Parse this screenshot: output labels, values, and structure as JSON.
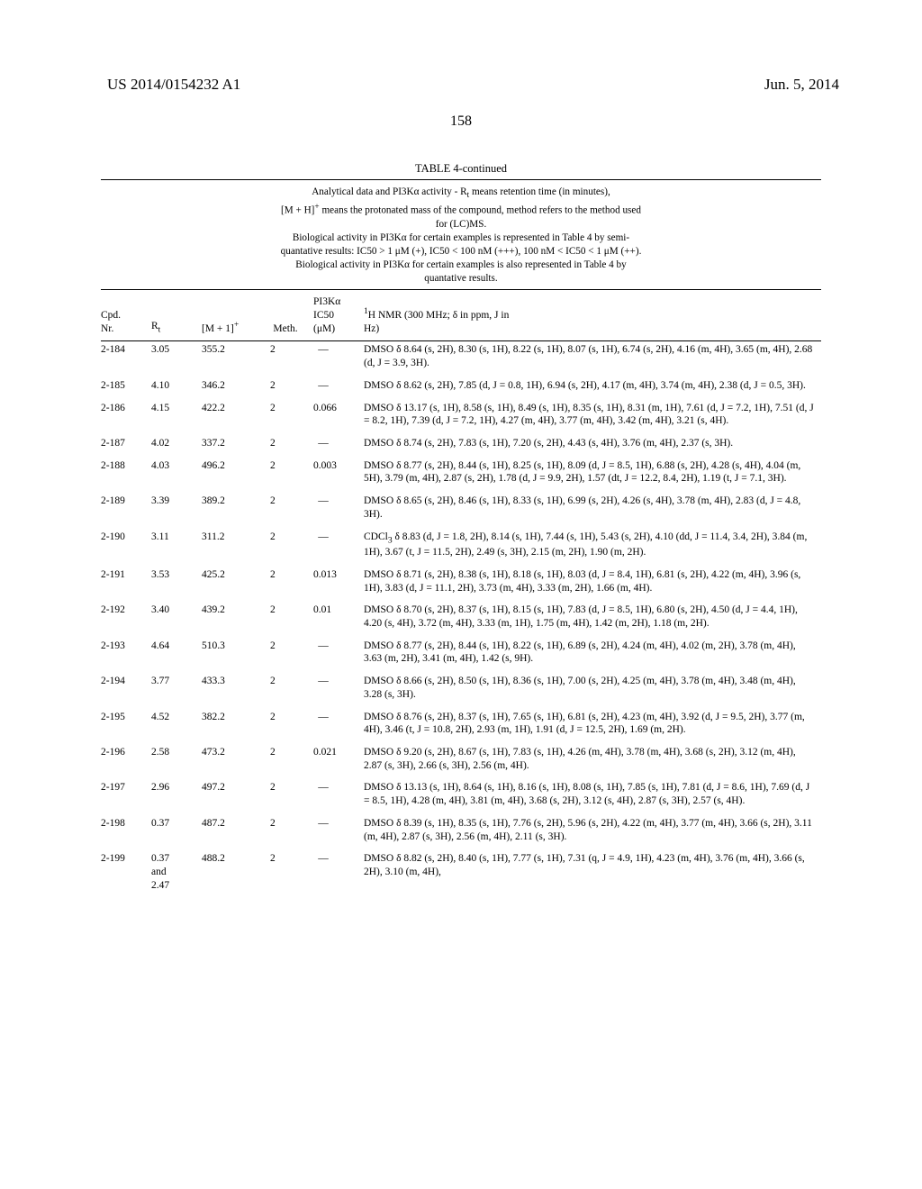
{
  "header": {
    "left": "US 2014/0154232 A1",
    "right": "Jun. 5, 2014"
  },
  "page_number": "158",
  "table": {
    "title": "TABLE 4-continued",
    "caption_lines": [
      "Analytical data and PI3Kα activity - R<sub>t</sub> means retention time (in minutes),",
      "[M + H]<sup>+</sup> means the protonated mass of the compound, method refers to the method used",
      "for (LC)MS.",
      "Biological activity in PI3Kα for certain examples is represented in Table 4 by semi-",
      "quantative results: IC50 > 1 μM (+), IC50 < 100 nM (+++), 100 nM < IC50 < 1 μM (++).",
      "Biological activity in PI3Kα for certain examples is also represented in Table 4 by",
      "quantative results."
    ],
    "columns": {
      "cpd": "Cpd.<br>Nr.",
      "rt": "R<sub>t</sub>",
      "m1": "[M + 1]<sup>+</sup>",
      "meth": "Meth.",
      "ic50": "PI3Kα<br>IC50<br>(μM)",
      "nmr": "<sup>1</sup>H NMR (300 MHz; δ in ppm, J in<br>Hz)"
    },
    "rows": [
      {
        "cpd": "2-184",
        "rt": "3.05",
        "m1": "355.2",
        "meth": "2",
        "ic50": "—",
        "nmr": "DMSO δ 8.64 (s, 2H), 8.30 (s, 1H), 8.22 (s, 1H), 8.07 (s, 1H), 6.74 (s, 2H), 4.16 (m, 4H), 3.65 (m, 4H), 2.68 (d, J = 3.9, 3H)."
      },
      {
        "cpd": "2-185",
        "rt": "4.10",
        "m1": "346.2",
        "meth": "2",
        "ic50": "—",
        "nmr": "DMSO δ 8.62 (s, 2H), 7.85 (d, J = 0.8, 1H), 6.94 (s, 2H), 4.17 (m, 4H), 3.74 (m, 4H), 2.38 (d, J = 0.5, 3H)."
      },
      {
        "cpd": "2-186",
        "rt": "4.15",
        "m1": "422.2",
        "meth": "2",
        "ic50": "0.066",
        "nmr": "DMSO δ 13.17 (s, 1H), 8.58 (s, 1H), 8.49 (s, 1H), 8.35 (s, 1H), 8.31 (m, 1H), 7.61 (d, J = 7.2, 1H), 7.51 (d, J = 8.2, 1H), 7.39 (d, J = 7.2, 1H), 4.27 (m, 4H), 3.77 (m, 4H), 3.42 (m, 4H), 3.21 (s, 4H)."
      },
      {
        "cpd": "2-187",
        "rt": "4.02",
        "m1": "337.2",
        "meth": "2",
        "ic50": "—",
        "nmr": "DMSO δ 8.74 (s, 2H), 7.83 (s, 1H), 7.20 (s, 2H), 4.43 (s, 4H), 3.76 (m, 4H), 2.37 (s, 3H)."
      },
      {
        "cpd": "2-188",
        "rt": "4.03",
        "m1": "496.2",
        "meth": "2",
        "ic50": "0.003",
        "nmr": "DMSO δ 8.77 (s, 2H), 8.44 (s, 1H), 8.25 (s, 1H), 8.09 (d, J = 8.5, 1H), 6.88 (s, 2H), 4.28 (s, 4H), 4.04 (m, 5H), 3.79 (m, 4H), 2.87 (s, 2H), 1.78 (d, J = 9.9, 2H), 1.57 (dt, J = 12.2, 8.4, 2H), 1.19 (t, J = 7.1, 3H)."
      },
      {
        "cpd": "2-189",
        "rt": "3.39",
        "m1": "389.2",
        "meth": "2",
        "ic50": "—",
        "nmr": "DMSO δ 8.65 (s, 2H), 8.46 (s, 1H), 8.33 (s, 1H), 6.99 (s, 2H), 4.26 (s, 4H), 3.78 (m, 4H), 2.83 (d, J = 4.8, 3H)."
      },
      {
        "cpd": "2-190",
        "rt": "3.11",
        "m1": "311.2",
        "meth": "2",
        "ic50": "—",
        "nmr": "CDCl<sub>3</sub> δ 8.83 (d, J = 1.8, 2H), 8.14 (s, 1H), 7.44 (s, 1H), 5.43 (s, 2H), 4.10 (dd, J = 11.4, 3.4, 2H), 3.84 (m, 1H), 3.67 (t, J = 11.5, 2H), 2.49 (s, 3H), 2.15 (m, 2H), 1.90 (m, 2H)."
      },
      {
        "cpd": "2-191",
        "rt": "3.53",
        "m1": "425.2",
        "meth": "2",
        "ic50": "0.013",
        "nmr": "DMSO δ 8.71 (s, 2H), 8.38 (s, 1H), 8.18 (s, 1H), 8.03 (d, J = 8.4, 1H), 6.81 (s, 2H), 4.22 (m, 4H), 3.96 (s, 1H), 3.83 (d, J = 11.1, 2H), 3.73 (m, 4H), 3.33 (m, 2H), 1.66 (m, 4H)."
      },
      {
        "cpd": "2-192",
        "rt": "3.40",
        "m1": "439.2",
        "meth": "2",
        "ic50": "0.01",
        "nmr": "DMSO δ 8.70 (s, 2H), 8.37 (s, 1H), 8.15 (s, 1H), 7.83 (d, J = 8.5, 1H), 6.80 (s, 2H), 4.50 (d, J = 4.4, 1H), 4.20 (s, 4H), 3.72 (m, 4H), 3.33 (m, 1H), 1.75 (m, 4H), 1.42 (m, 2H), 1.18 (m, 2H)."
      },
      {
        "cpd": "2-193",
        "rt": "4.64",
        "m1": "510.3",
        "meth": "2",
        "ic50": "—",
        "nmr": "DMSO δ 8.77 (s, 2H), 8.44 (s, 1H), 8.22 (s, 1H), 6.89 (s, 2H), 4.24 (m, 4H), 4.02 (m, 2H), 3.78 (m, 4H), 3.63 (m, 2H), 3.41 (m, 4H), 1.42 (s, 9H)."
      },
      {
        "cpd": "2-194",
        "rt": "3.77",
        "m1": "433.3",
        "meth": "2",
        "ic50": "—",
        "nmr": "DMSO δ 8.66 (s, 2H), 8.50 (s, 1H), 8.36 (s, 1H), 7.00 (s, 2H), 4.25 (m, 4H), 3.78 (m, 4H), 3.48 (m, 4H), 3.28 (s, 3H)."
      },
      {
        "cpd": "2-195",
        "rt": "4.52",
        "m1": "382.2",
        "meth": "2",
        "ic50": "—",
        "nmr": "DMSO δ 8.76 (s, 2H), 8.37 (s, 1H), 7.65 (s, 1H), 6.81 (s, 2H), 4.23 (m, 4H), 3.92 (d, J = 9.5, 2H), 3.77 (m, 4H), 3.46 (t, J = 10.8, 2H), 2.93 (m, 1H), 1.91 (d, J = 12.5, 2H), 1.69 (m, 2H)."
      },
      {
        "cpd": "2-196",
        "rt": "2.58",
        "m1": "473.2",
        "meth": "2",
        "ic50": "0.021",
        "nmr": "DMSO δ 9.20 (s, 2H), 8.67 (s, 1H), 7.83 (s, 1H), 4.26 (m, 4H), 3.78 (m, 4H), 3.68 (s, 2H), 3.12 (m, 4H), 2.87 (s, 3H), 2.66 (s, 3H), 2.56 (m, 4H)."
      },
      {
        "cpd": "2-197",
        "rt": "2.96",
        "m1": "497.2",
        "meth": "2",
        "ic50": "—",
        "nmr": "DMSO δ 13.13 (s, 1H), 8.64 (s, 1H), 8.16 (s, 1H), 8.08 (s, 1H), 7.85 (s, 1H), 7.81 (d, J = 8.6, 1H), 7.69 (d, J = 8.5, 1H), 4.28 (m, 4H), 3.81 (m, 4H), 3.68 (s, 2H), 3.12 (s, 4H), 2.87 (s, 3H), 2.57 (s, 4H)."
      },
      {
        "cpd": "2-198",
        "rt": "0.37",
        "m1": "487.2",
        "meth": "2",
        "ic50": "—",
        "nmr": "DMSO δ 8.39 (s, 1H), 8.35 (s, 1H), 7.76 (s, 2H), 5.96 (s, 2H), 4.22 (m, 4H), 3.77 (m, 4H), 3.66 (s, 2H), 3.11 (m, 4H), 2.87 (s, 3H), 2.56 (m, 4H), 2.11 (s, 3H)."
      },
      {
        "cpd": "2-199",
        "rt": "0.37<br>and<br>2.47",
        "m1": "488.2",
        "meth": "2",
        "ic50": "—",
        "nmr": "DMSO δ 8.82 (s, 2H), 8.40 (s, 1H), 7.77 (s, 1H), 7.31 (q, J = 4.9, 1H), 4.23 (m, 4H), 3.76 (m, 4H), 3.66 (s, 2H), 3.10 (m, 4H),"
      }
    ]
  }
}
